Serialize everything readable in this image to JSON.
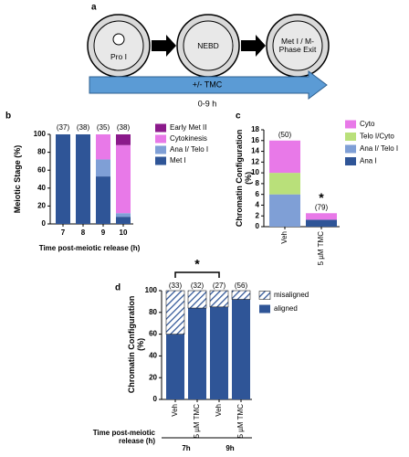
{
  "diagram": {
    "panel_label": "a",
    "stages": [
      "Pro I",
      "NEBD",
      "Met I / M-Phase Exit"
    ],
    "arrow_label": "+/- TMC",
    "duration": "0-9 h"
  },
  "chart_data": [
    {
      "type": "bar",
      "stacked": true,
      "panel_label": "b",
      "categories": [
        "7",
        "8",
        "9",
        "10"
      ],
      "n_labels": [
        "(37)",
        "(38)",
        "(35)",
        "(38)"
      ],
      "x_label": "Time post-meiotic release (h)",
      "y_label": "Meiotic Stage (%)",
      "ylim": [
        0,
        100
      ],
      "yticks": [
        0,
        20,
        40,
        60,
        80,
        100
      ],
      "series": [
        {
          "name": "Met I",
          "color": "#2f5597",
          "values": [
            100,
            100,
            53,
            8
          ]
        },
        {
          "name": "Ana I/ Telo I",
          "color": "#7f9fd6",
          "values": [
            0,
            0,
            19,
            4
          ]
        },
        {
          "name": "Cytokinesis",
          "color": "#e879e8",
          "values": [
            0,
            0,
            28,
            76
          ]
        },
        {
          "name": "Early Met II",
          "color": "#8b1a8b",
          "values": [
            0,
            0,
            0,
            12
          ]
        }
      ]
    },
    {
      "type": "bar",
      "stacked": true,
      "panel_label": "c",
      "categories": [
        "Veh",
        "5 µM TMC"
      ],
      "n_labels": [
        "(50)",
        "(79)"
      ],
      "annotation": "*",
      "y_label": "Chromatin Configuration (%)",
      "ylim": [
        0,
        18
      ],
      "yticks": [
        0,
        2,
        4,
        6,
        8,
        10,
        12,
        14,
        16,
        18
      ],
      "series": [
        {
          "name": "Ana I",
          "color": "#2f5597",
          "values": [
            0,
            1.3
          ]
        },
        {
          "name": "Ana I/ Telo I",
          "color": "#7f9fd6",
          "values": [
            6,
            0
          ]
        },
        {
          "name": "Telo I/Cyto",
          "color": "#b9e07a",
          "values": [
            4,
            0
          ]
        },
        {
          "name": "Cyto",
          "color": "#e879e8",
          "values": [
            6,
            1.2
          ]
        }
      ]
    },
    {
      "type": "bar",
      "stacked": true,
      "panel_label": "d",
      "categories": [
        "Veh",
        "5 µM TMC",
        "Veh",
        "5 µM TMC"
      ],
      "n_labels": [
        "(33)",
        "(32)",
        "(27)",
        "(56)"
      ],
      "groups": [
        "7h",
        "9h"
      ],
      "group_axis_label": "Time post-meiotic release (h)",
      "bracket_label": "*",
      "y_label": "Chromatin Configuration (%)",
      "ylim": [
        0,
        100
      ],
      "yticks": [
        0,
        20,
        40,
        60,
        80,
        100
      ],
      "series": [
        {
          "name": "aligned",
          "color": "#2f5597",
          "values": [
            60,
            84,
            85,
            92
          ]
        },
        {
          "name": "misaligned",
          "color": "#2f5597",
          "hatch": true,
          "values": [
            40,
            16,
            15,
            8
          ]
        }
      ]
    }
  ]
}
